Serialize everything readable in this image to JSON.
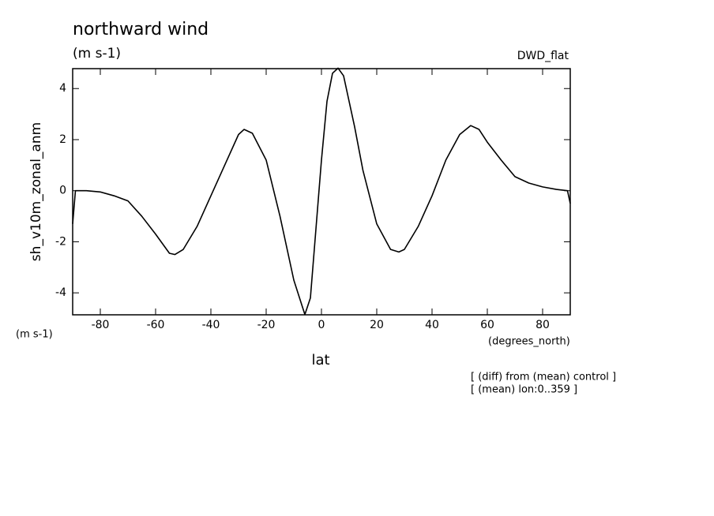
{
  "chart_data": {
    "type": "line",
    "title": "northward wind",
    "subtitle": "(m s-1)",
    "dataset_label": "DWD_flat",
    "y_label": "sh_v10m_zonal_anm",
    "y_units": "(m s-1)",
    "x_label": "lat",
    "x_units": "(degrees_north)",
    "annotations": [
      "[ (diff) from (mean) control ]",
      "[ (mean) lon:0..359 ]"
    ],
    "x": [
      -90,
      -89,
      -85,
      -80,
      -75,
      -70,
      -65,
      -60,
      -55,
      -53,
      -50,
      -45,
      -40,
      -35,
      -30,
      -28,
      -25,
      -20,
      -15,
      -10,
      -6,
      -4,
      -2,
      0,
      2,
      4,
      6,
      8,
      10,
      12,
      15,
      20,
      25,
      28,
      30,
      35,
      40,
      45,
      50,
      54,
      57,
      60,
      65,
      70,
      75,
      80,
      85,
      89,
      90
    ],
    "series": [
      {
        "color": "#000000",
        "values": [
          -1.3,
          0.0,
          0.0,
          -0.05,
          -0.2,
          -0.4,
          -1.0,
          -1.7,
          -2.45,
          -2.5,
          -2.3,
          -1.4,
          -0.2,
          1.0,
          2.2,
          2.4,
          2.25,
          1.2,
          -1.0,
          -3.5,
          -4.85,
          -4.2,
          -1.5,
          1.2,
          3.5,
          4.6,
          4.8,
          4.5,
          3.5,
          2.5,
          0.8,
          -1.3,
          -2.3,
          -2.4,
          -2.3,
          -1.4,
          -0.2,
          1.2,
          2.2,
          2.55,
          2.4,
          1.9,
          1.2,
          0.55,
          0.3,
          0.15,
          0.05,
          0.0,
          -0.5
        ]
      }
    ],
    "xlim": [
      -90,
      90
    ],
    "ylim": [
      -4.86,
      4.78
    ],
    "xticks": [
      -80,
      -60,
      -40,
      -20,
      0,
      20,
      40,
      60,
      80
    ],
    "yticks": [
      -4,
      -2,
      0,
      2,
      4
    ]
  }
}
